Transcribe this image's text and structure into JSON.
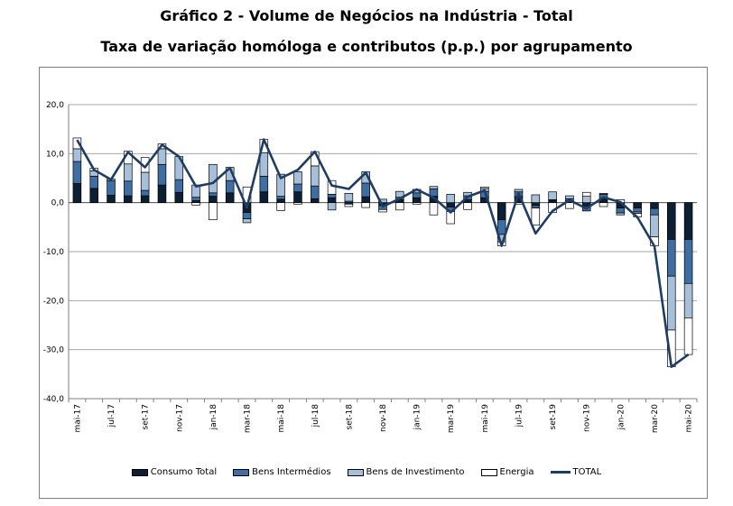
{
  "title": "Gráfico 2 - Volume de Negócios na Indústria - Total",
  "subtitle": "Taxa de variação homóloga e contributos (p.p.) por agrupamento",
  "colors": {
    "consumo": "#0d1f33",
    "intermedios": "#3f6ea3",
    "investimento": "#a7bfd9",
    "energia": "#ffffff",
    "total": "#1f3d63",
    "grid": "#a6a6a6"
  },
  "legend": {
    "consumo": "Consumo Total",
    "intermedios": "Bens Intermédios",
    "investimento": "Bens de Investimento",
    "energia": "Energia",
    "total": "TOTAL"
  },
  "chart_data": {
    "type": "bar",
    "stacked": true,
    "title": "Gráfico 2 - Volume de Negócios na Indústria - Total",
    "subtitle": "Taxa de variação homóloga e contributos (p.p.) por agrupamento",
    "ylim": [
      -40,
      20
    ],
    "yticks": [
      "20,0",
      "10,0",
      "0,0",
      "-10,0",
      "-20,0",
      "-30,0",
      "-40,0"
    ],
    "grid": true,
    "legend_position": "bottom",
    "categories": [
      "mai-17",
      "jun-17",
      "jul-17",
      "ago-17",
      "set-17",
      "out-17",
      "nov-17",
      "dez-17",
      "jan-18",
      "fev-18",
      "mar-18",
      "abr-18",
      "mai-18",
      "jun-18",
      "jul-18",
      "ago-18",
      "set-18",
      "out-18",
      "nov-18",
      "dez-18",
      "jan-19",
      "fev-19",
      "mar-19",
      "abr-19",
      "mai-19",
      "jun-19",
      "jul-19",
      "ago-19",
      "set-19",
      "out-19",
      "nov-19",
      "dez-19",
      "jan-20",
      "fev-20",
      "mar-20",
      "abr-20",
      "mai-20"
    ],
    "xtick_labels": [
      "mai-17",
      "",
      "jul-17",
      "",
      "set-17",
      "",
      "nov-17",
      "",
      "jan-18",
      "",
      "mar-18",
      "",
      "mai-18",
      "",
      "jul-18",
      "",
      "set-18",
      "",
      "nov-18",
      "",
      "jan-19",
      "",
      "mar-19",
      "",
      "mai-19",
      "",
      "jul-19",
      "",
      "set-19",
      "",
      "nov-19",
      "",
      "jan-20",
      "",
      "mar-20",
      "",
      "mai-20"
    ],
    "series": [
      {
        "name": "Consumo Total",
        "key": "consumo",
        "values": [
          3.9,
          2.9,
          1.5,
          1.4,
          1.4,
          3.6,
          2.1,
          0.4,
          1.3,
          2.0,
          -2.0,
          2.2,
          0.7,
          2.2,
          0.8,
          1.0,
          -0.3,
          1.2,
          -0.6,
          0.6,
          1.0,
          1.3,
          -0.9,
          0.6,
          1.0,
          -3.5,
          1.2,
          -0.6,
          0.5,
          0.4,
          -0.7,
          0.7,
          -1.1,
          -1.1,
          -1.2,
          -7.5,
          -7.5
        ]
      },
      {
        "name": "Bens Intermédios",
        "key": "intermedios",
        "values": [
          4.5,
          2.5,
          3.0,
          3.0,
          1.1,
          4.2,
          2.6,
          0.7,
          0.7,
          2.5,
          -1.3,
          3.2,
          0.6,
          1.6,
          2.6,
          0.7,
          0.3,
          2.8,
          -0.8,
          0.5,
          1.0,
          1.5,
          -0.9,
          0.8,
          1.3,
          -3.0,
          1.0,
          -0.5,
          0.1,
          0.4,
          -1.0,
          1.0,
          -1.0,
          -0.8,
          -1.3,
          -7.5,
          -9.0
        ]
      },
      {
        "name": "Bens de Investimento",
        "key": "investimento",
        "values": [
          2.6,
          1.1,
          0.3,
          3.5,
          3.7,
          3.2,
          4.7,
          2.5,
          5.8,
          2.7,
          -0.8,
          4.8,
          4.5,
          2.5,
          4.1,
          -1.5,
          1.6,
          2.3,
          0.7,
          1.2,
          0.7,
          0.5,
          1.7,
          0.7,
          0.6,
          -1.5,
          0.5,
          1.6,
          1.6,
          0.6,
          1.3,
          0.2,
          -0.4,
          -0.3,
          -4.5,
          -11.0,
          -7.0
        ]
      },
      {
        "name": "Energia",
        "key": "energia",
        "values": [
          2.2,
          0.5,
          0.0,
          2.6,
          3.0,
          1.0,
          0.0,
          -0.5,
          -3.5,
          0.0,
          3.2,
          2.7,
          -1.6,
          -0.3,
          2.9,
          2.8,
          -0.5,
          -1.0,
          -0.5,
          -1.5,
          -0.3,
          -2.5,
          -2.5,
          -1.4,
          0.3,
          -0.8,
          -0.3,
          -3.5,
          -2.0,
          -1.2,
          0.8,
          -0.8,
          0.6,
          -0.7,
          -1.8,
          -7.5,
          -7.5
        ]
      },
      {
        "name": "TOTAL",
        "key": "total",
        "type": "line",
        "values": [
          12.8,
          6.7,
          4.7,
          10.3,
          7.2,
          11.8,
          9.4,
          3.3,
          4.0,
          7.1,
          -1.0,
          12.9,
          5.0,
          6.7,
          10.4,
          3.5,
          2.8,
          6.1,
          -0.8,
          0.8,
          2.7,
          1.0,
          -2.0,
          1.2,
          2.5,
          -8.8,
          1.9,
          -6.3,
          -1.7,
          0.5,
          -1.2,
          1.1,
          0.1,
          -3.0,
          -8.9,
          -33.5,
          -31.0
        ]
      }
    ]
  }
}
